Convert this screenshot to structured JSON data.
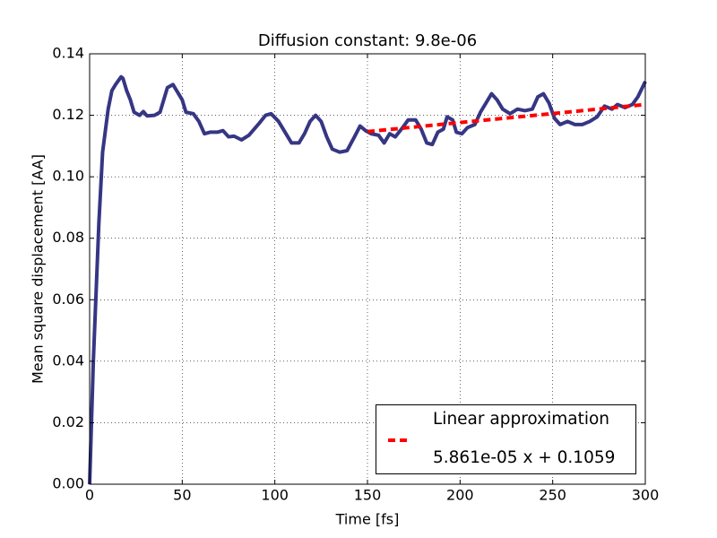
{
  "chart_data": {
    "type": "line",
    "title": "Diffusion constant: 9.8e-06",
    "xlabel": "Time [fs]",
    "ylabel": "Mean square displacement [AA]",
    "xlim": [
      0,
      300
    ],
    "ylim": [
      0,
      0.14
    ],
    "xticks": [
      0,
      50,
      100,
      150,
      200,
      250,
      300
    ],
    "yticks": [
      {
        "value": 0,
        "label": "0.00"
      },
      0.02,
      0.04,
      0.06,
      0.08,
      {
        "value": 0.1,
        "label": "0.10"
      },
      0.12,
      0.14
    ],
    "grid": true,
    "legend": "lower right",
    "series": [
      {
        "color": "#363684",
        "style": "solid",
        "x": [
          0,
          2,
          5,
          7,
          10,
          12,
          14,
          17,
          18,
          20,
          22,
          24,
          27,
          29,
          31,
          35,
          38,
          40,
          42,
          45,
          47,
          50,
          52,
          56,
          59,
          62,
          65,
          69,
          72,
          75,
          78,
          82,
          86,
          91,
          95,
          98,
          102,
          105,
          109,
          113,
          116,
          119,
          122,
          125,
          128,
          131,
          135,
          139,
          143,
          146,
          149,
          152,
          156,
          159,
          162,
          165,
          169,
          172,
          176,
          179,
          182,
          185,
          188,
          191,
          193,
          196,
          198,
          201,
          204,
          208,
          211,
          214,
          217,
          220,
          223,
          227,
          231,
          235,
          239,
          242,
          245,
          248,
          251,
          254,
          258,
          262,
          266,
          270,
          274,
          278,
          282,
          285,
          289,
          293,
          296,
          300
        ],
        "values": [
          0,
          0.04,
          0.085,
          0.108,
          0.122,
          0.128,
          0.13,
          0.1325,
          0.132,
          0.128,
          0.125,
          0.121,
          0.12,
          0.1212,
          0.1198,
          0.12,
          0.121,
          0.125,
          0.129,
          0.13,
          0.128,
          0.125,
          0.121,
          0.1205,
          0.118,
          0.114,
          0.1145,
          0.1145,
          0.115,
          0.113,
          0.1132,
          0.112,
          0.1135,
          0.117,
          0.12,
          0.1205,
          0.118,
          0.115,
          0.111,
          0.111,
          0.114,
          0.118,
          0.12,
          0.118,
          0.113,
          0.109,
          0.108,
          0.1085,
          0.113,
          0.1165,
          0.115,
          0.114,
          0.1135,
          0.111,
          0.114,
          0.113,
          0.116,
          0.1185,
          0.1185,
          0.1155,
          0.111,
          0.1105,
          0.1145,
          0.1155,
          0.1195,
          0.1185,
          0.1145,
          0.114,
          0.116,
          0.117,
          0.121,
          0.124,
          0.127,
          0.125,
          0.122,
          0.1205,
          0.122,
          0.1215,
          0.122,
          0.126,
          0.127,
          0.124,
          0.119,
          0.117,
          0.118,
          0.117,
          0.117,
          0.118,
          0.1195,
          0.123,
          0.122,
          0.1235,
          0.1225,
          0.1235,
          0.126,
          0.131
        ]
      },
      {
        "name": "Linear approximation\n\n5.861e-05 x + 0.1059",
        "color": "#ff0000",
        "style": "dashed",
        "x": [
          150,
          300
        ],
        "values": [
          0.1147,
          0.1235
        ]
      }
    ]
  }
}
